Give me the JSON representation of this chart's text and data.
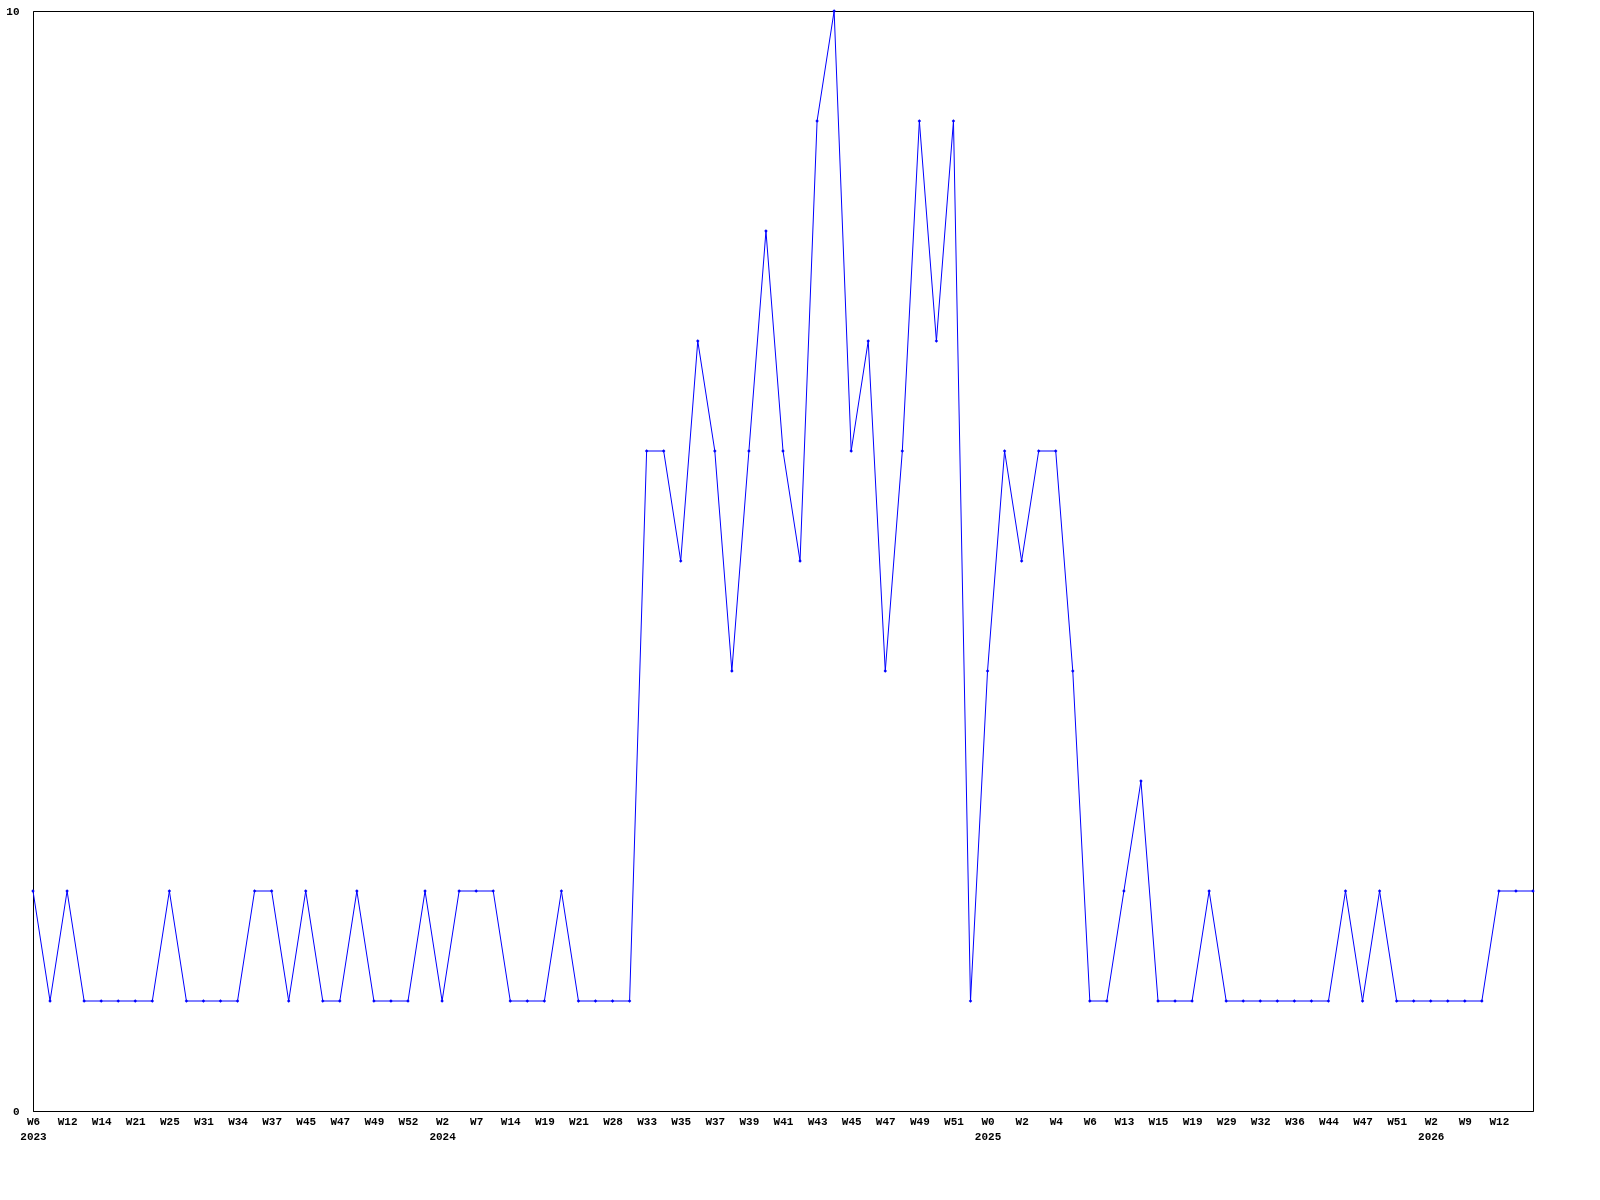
{
  "chart_data": {
    "type": "line",
    "color": "#0000ff",
    "marker": "diamond",
    "grid": false,
    "categories": [
      "W6\n2023",
      null,
      "W12",
      null,
      "W14",
      null,
      "W21",
      null,
      "W25",
      null,
      "W31",
      null,
      "W34",
      null,
      "W37",
      null,
      "W45",
      null,
      "W47",
      null,
      "W49",
      null,
      "W52",
      null,
      "W2\n2024",
      null,
      "W7",
      null,
      "W14",
      null,
      "W19",
      null,
      "W21",
      null,
      "W28",
      null,
      "W33",
      null,
      "W35",
      null,
      "W37",
      null,
      "W39",
      null,
      "W41",
      null,
      "W43",
      null,
      "W45",
      null,
      "W47",
      null,
      "W49",
      null,
      "W51",
      null,
      "W0\n2025",
      null,
      "W2",
      null,
      "W4",
      null,
      "W6",
      null,
      "W13",
      null,
      "W15",
      null,
      "W19",
      null,
      "W29",
      null,
      "W32",
      null,
      "W36",
      null,
      "W44",
      null,
      "W47",
      null,
      "W51",
      null,
      "W2\n2026",
      null,
      "W9",
      null,
      "W12",
      null,
      null
    ],
    "values": [
      2,
      1,
      2,
      1,
      1,
      1,
      1,
      1,
      2,
      1,
      1,
      1,
      1,
      2,
      2,
      1,
      2,
      1,
      1,
      2,
      1,
      1,
      1,
      2,
      1,
      2,
      2,
      2,
      1,
      1,
      1,
      2,
      1,
      1,
      1,
      1,
      6,
      6,
      5,
      7,
      6,
      4,
      6,
      8,
      6,
      5,
      9,
      10,
      6,
      7,
      4,
      6,
      9,
      7,
      9,
      1,
      4,
      6,
      5,
      6,
      6,
      4,
      1,
      1,
      2,
      3,
      1,
      1,
      1,
      2,
      1,
      1,
      1,
      1,
      1,
      1,
      1,
      2,
      1,
      2,
      1,
      1,
      1,
      1,
      1,
      1,
      2,
      2,
      2
    ],
    "ylim": [
      0,
      10
    ],
    "yticks": [
      0,
      10
    ]
  }
}
